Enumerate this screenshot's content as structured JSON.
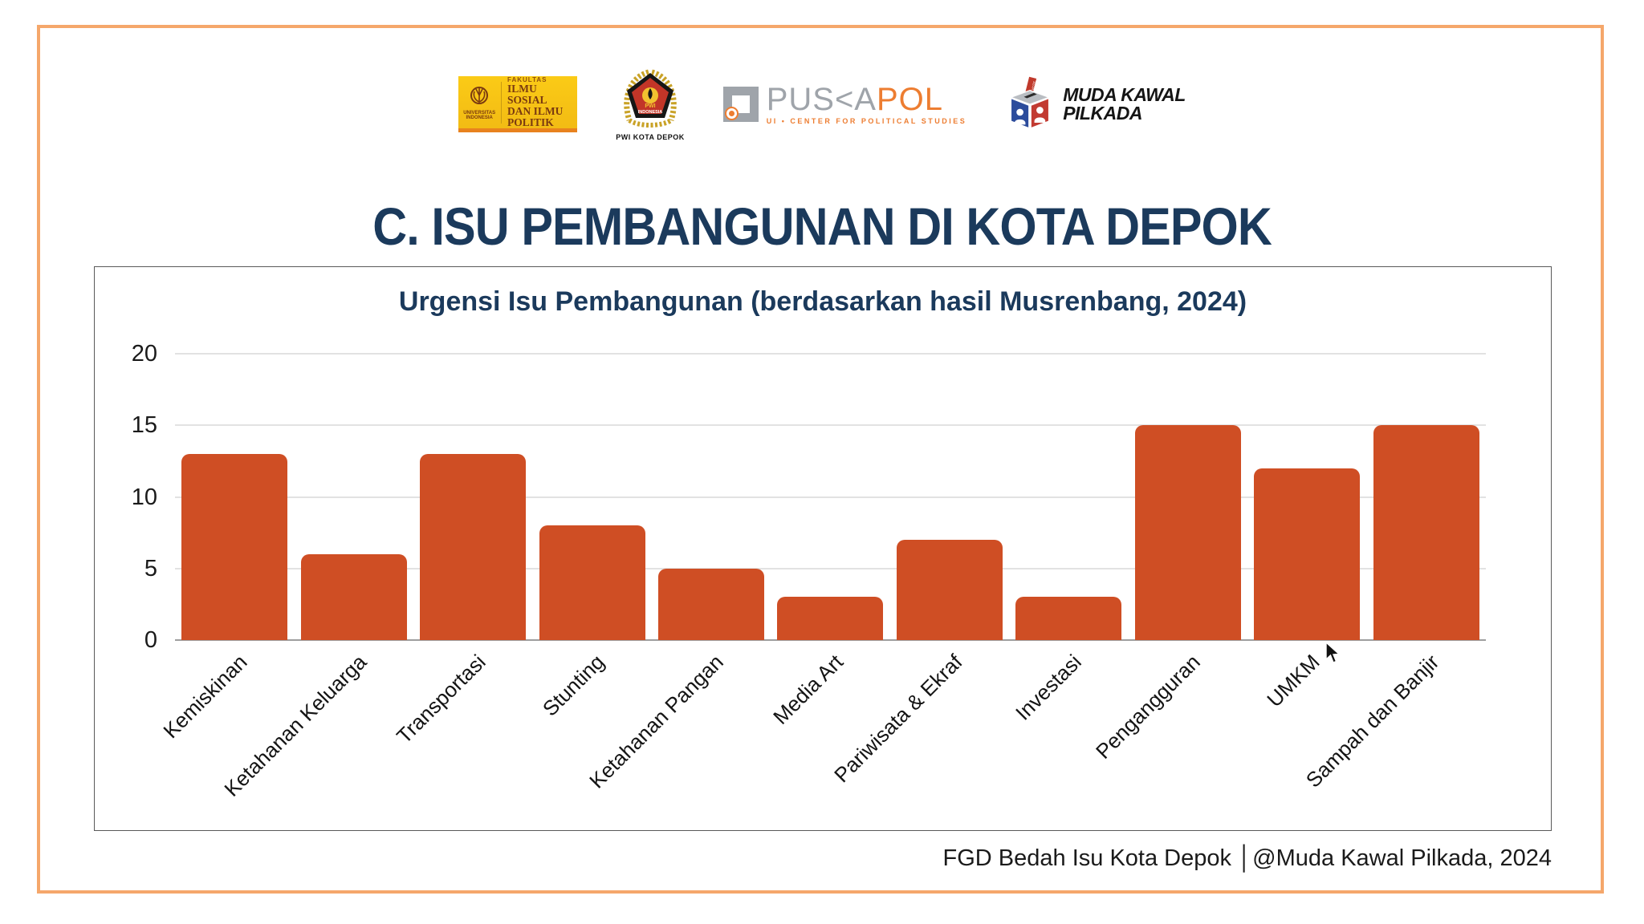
{
  "slide": {
    "title": "C. ISU PEMBANGUNAN DI KOTA DEPOK",
    "footer": "FGD Bedah Isu Kota Depok │@Muda Kawal Pilkada, 2024"
  },
  "logos": {
    "fisip": {
      "university_line1": "UNIVERSITAS",
      "university_line2": "INDONESIA",
      "fakultas": "FAKULTAS",
      "line1": "ILMU SOSIAL",
      "line2": "DAN ILMU",
      "line3": "POLITIK"
    },
    "pwi": {
      "pwi": "PWI",
      "country": "INDONESIA",
      "caption": "PWI KOTA DEPOK"
    },
    "puskapol": {
      "name_gray": "PUS<A",
      "name_orange": "POL",
      "subtitle": "UI • CENTER FOR POLITICAL STUDIES"
    },
    "muda_kawal_pilkada": {
      "vote": "VOTE",
      "line1": "MUDA KAWAL",
      "line2": "PILKADA"
    }
  },
  "chart_data": {
    "type": "bar",
    "title": "Urgensi Isu Pembangunan (berdasarkan hasil Musrenbang, 2024)",
    "categories": [
      "Kemiskinan",
      "Ketahanan Keluarga",
      "Transportasi",
      "Stunting",
      "Ketahanan Pangan",
      "Media Art",
      "Pariwisata & Ekraf",
      "Investasi",
      "Pengangguran",
      "UMKM",
      "Sampah dan Banjir"
    ],
    "values": [
      13,
      6,
      13,
      8,
      5,
      3,
      7,
      3,
      15,
      12,
      15
    ],
    "xlabel": "",
    "ylabel": "",
    "ylim": [
      0,
      20
    ],
    "yticks": [
      0,
      5,
      10,
      15,
      20
    ],
    "grid": true,
    "legend": "none",
    "bar_color": "#CF4E24"
  },
  "colors": {
    "frame_accent": "#F5A76B",
    "title_navy": "#1B3A5C",
    "bar_orange": "#CF4E24",
    "gridline": "#E2E2E2",
    "axis_line": "#9E9E9E"
  }
}
